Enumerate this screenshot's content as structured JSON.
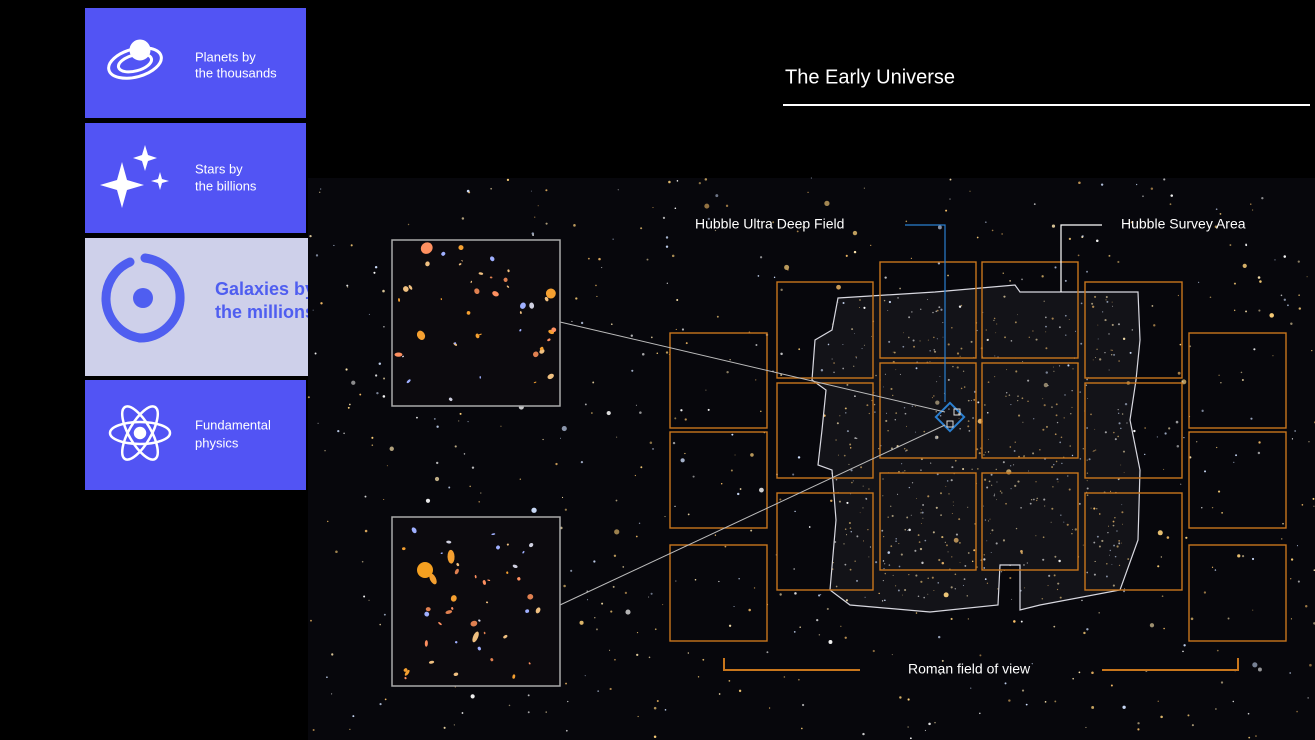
{
  "sidebar": {
    "items": [
      {
        "lines": [
          "Planets by",
          "the thousands"
        ]
      },
      {
        "lines": [
          "Stars by",
          "the billions"
        ]
      },
      {
        "lines": [
          "Galaxies by",
          "the millions"
        ]
      },
      {
        "lines": [
          "Fundamental",
          "physics"
        ]
      }
    ]
  },
  "main": {
    "title": "The Early Universe",
    "labels": {
      "udf": "Hubble Ultra Deep Field",
      "survey": "Hubble Survey Area",
      "roman": "Roman field of view"
    }
  }
}
